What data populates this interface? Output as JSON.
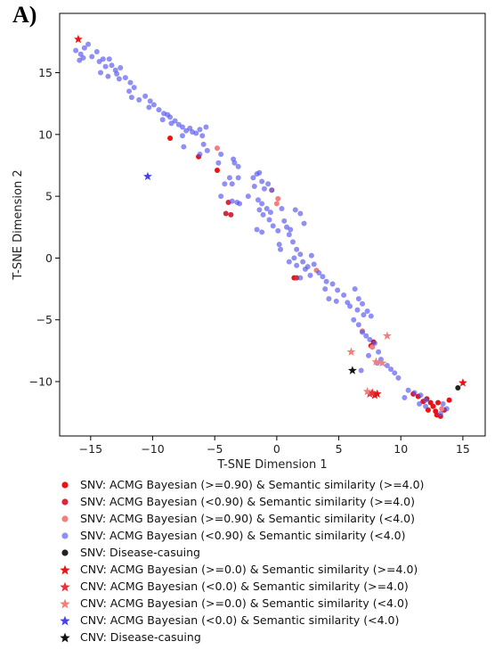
{
  "panel_label": "A)",
  "chart_data": {
    "type": "scatter",
    "title": "",
    "xlabel": "T-SNE Dimension 1",
    "ylabel": "T-SNE Dimension 2",
    "xlim": [
      -17.5,
      16.8
    ],
    "ylim": [
      -14.4,
      19.8
    ],
    "xticks": [
      -15,
      -10,
      -5,
      0,
      5,
      10,
      15
    ],
    "yticks": [
      -10,
      -5,
      0,
      5,
      10,
      15
    ],
    "xtick_labels": [
      "−15",
      "−10",
      "−5",
      "0",
      "5",
      "10",
      "15"
    ],
    "ytick_labels": [
      "−10",
      "−5",
      "0",
      "5",
      "10",
      "15"
    ],
    "grid": false,
    "legend_position": "below",
    "series": [
      {
        "name": "SNV: ACMG Bayesian (>=0.90) & Semantic similarity (>=4.0)",
        "marker": "circle",
        "color": "#ee1111",
        "alpha": 1.0,
        "points": [
          [
            -8.6,
            9.7
          ],
          [
            -6.3,
            8.2
          ],
          [
            -4.8,
            7.1
          ],
          [
            1.4,
            -1.6
          ],
          [
            7.8,
            -6.8
          ],
          [
            7.6,
            -7.1
          ],
          [
            11.0,
            -11.0
          ],
          [
            11.4,
            -11.2
          ],
          [
            11.8,
            -11.6
          ],
          [
            12.1,
            -11.4
          ],
          [
            12.4,
            -11.7
          ],
          [
            12.6,
            -12.0
          ],
          [
            12.2,
            -12.3
          ],
          [
            12.8,
            -12.4
          ],
          [
            13.0,
            -11.7
          ],
          [
            13.2,
            -12.8
          ],
          [
            12.9,
            -12.7
          ],
          [
            13.9,
            -11.5
          ],
          [
            13.5,
            -12.3
          ]
        ]
      },
      {
        "name": "SNV: ACMG Bayesian (<0.90) & Semantic similarity (>=4.0)",
        "marker": "circle",
        "color": "#d62a3c",
        "alpha": 1.0,
        "points": [
          [
            -3.9,
            4.5
          ],
          [
            -4.1,
            3.6
          ],
          [
            -3.7,
            3.5
          ],
          [
            1.6,
            -1.6
          ]
        ]
      },
      {
        "name": "SNV: ACMG Bayesian (>=0.90) & Semantic similarity (<4.0)",
        "marker": "circle",
        "color": "#f08080",
        "alpha": 1.0,
        "points": [
          [
            -4.8,
            8.9
          ],
          [
            -0.4,
            5.5
          ],
          [
            0.1,
            4.8
          ],
          [
            0.0,
            4.4
          ],
          [
            3.2,
            -1.0
          ],
          [
            6.9,
            -5.9
          ],
          [
            7.7,
            -7.2
          ],
          [
            13.3,
            -12.2
          ]
        ]
      },
      {
        "name": "SNV: ACMG Bayesian (<0.90) & Semantic similarity (<4.0)",
        "marker": "circle",
        "color": "#5555ee",
        "alpha": 0.65,
        "points": [
          [
            -16.2,
            16.8
          ],
          [
            -15.8,
            16.5
          ],
          [
            -15.5,
            17.0
          ],
          [
            -15.2,
            17.3
          ],
          [
            -15.6,
            16.2
          ],
          [
            -15.9,
            16.0
          ],
          [
            -14.9,
            16.3
          ],
          [
            -14.5,
            16.7
          ],
          [
            -14.3,
            15.9
          ],
          [
            -14.0,
            16.1
          ],
          [
            -13.8,
            15.5
          ],
          [
            -14.2,
            15.0
          ],
          [
            -13.6,
            14.7
          ],
          [
            -13.5,
            16.1
          ],
          [
            -13.3,
            15.6
          ],
          [
            -13.0,
            15.2
          ],
          [
            -12.9,
            14.9
          ],
          [
            -12.6,
            15.4
          ],
          [
            -12.7,
            14.5
          ],
          [
            -12.2,
            14.6
          ],
          [
            -11.8,
            14.2
          ],
          [
            -11.9,
            13.5
          ],
          [
            -11.5,
            13.8
          ],
          [
            -11.7,
            13.0
          ],
          [
            -11.1,
            12.8
          ],
          [
            -10.6,
            13.1
          ],
          [
            -10.2,
            12.7
          ],
          [
            -10.3,
            12.2
          ],
          [
            -9.9,
            12.4
          ],
          [
            -9.5,
            12.0
          ],
          [
            -9.1,
            11.7
          ],
          [
            -9.2,
            11.2
          ],
          [
            -8.8,
            11.6
          ],
          [
            -8.6,
            11.4
          ],
          [
            -8.5,
            10.9
          ],
          [
            -8.2,
            11.1
          ],
          [
            -7.9,
            10.8
          ],
          [
            -7.6,
            10.6
          ],
          [
            -7.3,
            10.3
          ],
          [
            -7.6,
            9.9
          ],
          [
            -7.0,
            10.5
          ],
          [
            -6.8,
            10.2
          ],
          [
            -6.5,
            10.1
          ],
          [
            -6.2,
            10.4
          ],
          [
            -6.0,
            9.9
          ],
          [
            -5.7,
            10.6
          ],
          [
            -5.9,
            9.2
          ],
          [
            -5.6,
            8.7
          ],
          [
            -6.2,
            8.4
          ],
          [
            -7.5,
            9.0
          ],
          [
            -4.5,
            8.4
          ],
          [
            -4.7,
            7.7
          ],
          [
            -3.5,
            8.0
          ],
          [
            -3.4,
            7.7
          ],
          [
            -3.1,
            7.4
          ],
          [
            -3.8,
            6.5
          ],
          [
            -4.2,
            6.0
          ],
          [
            -3.1,
            6.5
          ],
          [
            -3.6,
            6.0
          ],
          [
            -4.5,
            5.0
          ],
          [
            -3.6,
            4.6
          ],
          [
            -3.2,
            4.5
          ],
          [
            -3.0,
            4.4
          ],
          [
            -2.3,
            5.0
          ],
          [
            -1.9,
            6.5
          ],
          [
            -1.6,
            6.8
          ],
          [
            -1.4,
            6.9
          ],
          [
            -1.8,
            5.8
          ],
          [
            -1.2,
            6.2
          ],
          [
            -1.0,
            5.6
          ],
          [
            -0.7,
            6.0
          ],
          [
            -0.4,
            5.5
          ],
          [
            -1.5,
            4.7
          ],
          [
            -1.2,
            4.4
          ],
          [
            -0.8,
            4.0
          ],
          [
            -0.5,
            3.7
          ],
          [
            -1.4,
            3.9
          ],
          [
            -1.1,
            3.5
          ],
          [
            -0.6,
            3.1
          ],
          [
            -0.3,
            2.6
          ],
          [
            -1.6,
            2.3
          ],
          [
            -1.2,
            2.1
          ],
          [
            0.1,
            2.2
          ],
          [
            0.6,
            3.0
          ],
          [
            0.8,
            2.5
          ],
          [
            1.1,
            2.3
          ],
          [
            1.5,
            3.9
          ],
          [
            1.9,
            3.6
          ],
          [
            2.2,
            2.8
          ],
          [
            0.4,
            4.0
          ],
          [
            0.2,
            1.1
          ],
          [
            0.3,
            0.7
          ],
          [
            1.0,
            1.9
          ],
          [
            1.3,
            1.3
          ],
          [
            1.6,
            0.7
          ],
          [
            1.9,
            0.3
          ],
          [
            1.4,
            0.0
          ],
          [
            1.0,
            -0.3
          ],
          [
            1.6,
            -0.6
          ],
          [
            2.1,
            -0.3
          ],
          [
            2.5,
            -0.7
          ],
          [
            2.8,
            0.2
          ],
          [
            3.0,
            -0.5
          ],
          [
            2.3,
            -0.9
          ],
          [
            1.9,
            -1.6
          ],
          [
            2.7,
            -1.4
          ],
          [
            3.4,
            -1.2
          ],
          [
            3.7,
            -1.5
          ],
          [
            4.0,
            -1.9
          ],
          [
            3.9,
            -2.5
          ],
          [
            4.5,
            -2.1
          ],
          [
            4.9,
            -2.6
          ],
          [
            4.2,
            -3.3
          ],
          [
            4.8,
            -3.5
          ],
          [
            5.4,
            -3.0
          ],
          [
            5.7,
            -3.6
          ],
          [
            5.9,
            -3.9
          ],
          [
            6.3,
            -2.5
          ],
          [
            6.6,
            -3.3
          ],
          [
            6.9,
            -3.7
          ],
          [
            6.5,
            -4.2
          ],
          [
            7.0,
            -4.6
          ],
          [
            7.3,
            -4.3
          ],
          [
            7.6,
            -4.7
          ],
          [
            6.2,
            -5.0
          ],
          [
            6.6,
            -5.4
          ],
          [
            6.9,
            -6.0
          ],
          [
            7.2,
            -6.3
          ],
          [
            7.5,
            -6.6
          ],
          [
            7.9,
            -6.9
          ],
          [
            8.2,
            -7.6
          ],
          [
            8.4,
            -8.2
          ],
          [
            8.1,
            -8.5
          ],
          [
            7.4,
            -7.9
          ],
          [
            6.8,
            -9.1
          ],
          [
            8.9,
            -8.7
          ],
          [
            9.2,
            -9.0
          ],
          [
            9.5,
            -9.3
          ],
          [
            9.8,
            -9.7
          ],
          [
            10.6,
            -10.7
          ],
          [
            11.1,
            -10.9
          ],
          [
            11.6,
            -11.1
          ],
          [
            12.0,
            -11.5
          ],
          [
            13.4,
            -11.8
          ],
          [
            13.7,
            -12.2
          ],
          [
            13.2,
            -12.6
          ],
          [
            12.0,
            -12.0
          ],
          [
            11.5,
            -11.8
          ],
          [
            10.3,
            -11.3
          ]
        ]
      },
      {
        "name": "SNV: Disease-casuing",
        "marker": "circle",
        "color": "#222222",
        "alpha": 1.0,
        "points": [
          [
            14.6,
            -10.5
          ]
        ]
      },
      {
        "name": "CNV: ACMG Bayesian (>=0.0) & Semantic similarity (>=4.0)",
        "marker": "star",
        "color": "#ee1111",
        "alpha": 1.0,
        "points": [
          [
            -16.0,
            17.7
          ],
          [
            15.0,
            -10.1
          ],
          [
            7.9,
            -11.1
          ],
          [
            8.1,
            -11.0
          ]
        ]
      },
      {
        "name": "CNV: ACMG Bayesian (<0.0) & Semantic similarity (>=4.0)",
        "marker": "star",
        "color": "#e8323c",
        "alpha": 1.0,
        "points": [
          [
            7.5,
            -11.0
          ],
          [
            7.7,
            -10.9
          ]
        ]
      },
      {
        "name": "CNV: ACMG Bayesian (>=0.0) & Semantic similarity (<4.0)",
        "marker": "star",
        "color": "#f08080",
        "alpha": 1.0,
        "points": [
          [
            6.0,
            -7.6
          ],
          [
            8.9,
            -6.3
          ],
          [
            8.0,
            -8.4
          ],
          [
            8.5,
            -8.5
          ],
          [
            7.3,
            -10.8
          ]
        ]
      },
      {
        "name": "CNV: ACMG Bayesian (<0.0) & Semantic similarity (<4.0)",
        "marker": "star",
        "color": "#4444ee",
        "alpha": 1.0,
        "points": [
          [
            -10.4,
            6.6
          ]
        ]
      },
      {
        "name": "CNV: Disease-casuing",
        "marker": "star",
        "color": "#111111",
        "alpha": 1.0,
        "points": [
          [
            6.1,
            -9.1
          ]
        ]
      }
    ]
  }
}
